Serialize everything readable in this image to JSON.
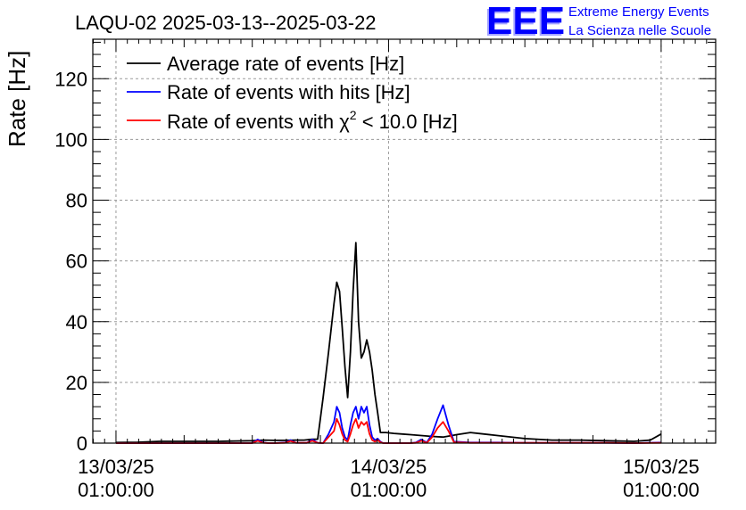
{
  "chart_data": {
    "type": "line",
    "title": "LAQU-02 2025-03-13--2025-03-22",
    "logo": {
      "text": "EEE",
      "line1": "Extreme Energy Events",
      "line2": "La Scienza nelle Scuole",
      "color": "#0000ff"
    },
    "xlabel": "",
    "ylabel": "Rate [Hz]",
    "ylim": [
      0,
      133
    ],
    "xlim": [
      -0.085,
      2.2
    ],
    "grid": true,
    "legend_position": "top-left",
    "x_ticks": [
      {
        "value": 0,
        "line1": "13/03/25",
        "line2": "01:00:00"
      },
      {
        "value": 1,
        "line1": "14/03/25",
        "line2": "01:00:00"
      },
      {
        "value": 2,
        "line1": "15/03/25",
        "line2": "01:00:00"
      }
    ],
    "y_ticks": [
      0,
      20,
      40,
      60,
      80,
      100,
      120
    ],
    "legend": [
      {
        "label": "Average rate of events [Hz]",
        "color": "#000000"
      },
      {
        "label": "Rate of events with hits [Hz]",
        "color": "#0000ff"
      },
      {
        "label_prefix": "Rate of events with ",
        "label_symbol": "χ",
        "label_sup": "2",
        "label_suffix": " < 10.0 [Hz]",
        "color": "#ff0000"
      }
    ],
    "series": [
      {
        "color": "#000000",
        "x": [
          0.0,
          0.08,
          0.16,
          0.24,
          0.32,
          0.38,
          0.44,
          0.5,
          0.54,
          0.58,
          0.62,
          0.66,
          0.69,
          0.72,
          0.74,
          0.76,
          0.78,
          0.8,
          0.81,
          0.82,
          0.83,
          0.84,
          0.85,
          0.86,
          0.87,
          0.88,
          0.89,
          0.9,
          0.91,
          0.92,
          0.93,
          0.94,
          0.95,
          0.96,
          0.97,
          0.99,
          1.02,
          1.05,
          1.08,
          1.12,
          1.16,
          1.2,
          1.25,
          1.3,
          1.35,
          1.4,
          1.5,
          1.6,
          1.7,
          1.8,
          1.9,
          1.96,
          2.0
        ],
        "y": [
          0.2,
          0.3,
          0.6,
          0.6,
          0.6,
          0.6,
          0.7,
          0.8,
          1.0,
          0.9,
          0.9,
          1.0,
          1.0,
          1.3,
          1.3,
          15,
          30,
          46,
          53,
          50,
          38,
          25,
          15,
          30,
          50,
          66,
          40,
          28,
          30,
          34,
          30,
          24,
          16,
          10,
          3.5,
          3.5,
          3.2,
          3.0,
          2.8,
          2.5,
          2.2,
          2.0,
          2.8,
          3.5,
          3.0,
          2.5,
          1.5,
          1.0,
          1.0,
          0.8,
          0.6,
          1.0,
          3.0
        ]
      },
      {
        "color": "#0000ff",
        "x": [
          0.0,
          0.08,
          0.16,
          0.24,
          0.32,
          0.38,
          0.44,
          0.5,
          0.52,
          0.54,
          0.56,
          0.58,
          0.62,
          0.64,
          0.66,
          0.7,
          0.72,
          0.74,
          0.76,
          0.78,
          0.8,
          0.81,
          0.82,
          0.83,
          0.84,
          0.85,
          0.86,
          0.87,
          0.88,
          0.89,
          0.9,
          0.91,
          0.92,
          0.93,
          0.94,
          0.95,
          0.96,
          0.97,
          0.98,
          0.99,
          1.02,
          1.05,
          1.08,
          1.1,
          1.12,
          1.14,
          1.16,
          1.18,
          1.2,
          1.22,
          1.24,
          1.3,
          1.4,
          1.5,
          1.6,
          1.7,
          1.8,
          1.9,
          2.0
        ],
        "y": [
          0,
          0,
          0,
          0,
          0,
          0,
          0,
          0,
          1.2,
          0.2,
          0,
          0,
          0.2,
          1.0,
          0.1,
          0.1,
          1.2,
          0.1,
          0,
          3,
          7,
          12,
          10,
          5,
          2,
          1,
          6,
          10,
          12,
          8,
          12,
          10,
          12,
          6,
          2,
          1,
          1.5,
          0.5,
          0,
          0,
          0,
          0,
          0,
          0.2,
          1.2,
          0.2,
          3,
          8,
          12.5,
          6,
          0.5,
          0.2,
          0.2,
          0.1,
          0.1,
          0.1,
          0.1,
          0,
          0.2
        ]
      },
      {
        "color": "#ff0000",
        "x": [
          0.0,
          0.08,
          0.16,
          0.24,
          0.32,
          0.38,
          0.44,
          0.5,
          0.52,
          0.54,
          0.56,
          0.58,
          0.62,
          0.64,
          0.66,
          0.7,
          0.72,
          0.74,
          0.76,
          0.78,
          0.8,
          0.81,
          0.82,
          0.83,
          0.84,
          0.85,
          0.86,
          0.87,
          0.88,
          0.89,
          0.9,
          0.91,
          0.92,
          0.93,
          0.94,
          0.95,
          0.96,
          0.97,
          0.98,
          0.99,
          1.02,
          1.05,
          1.08,
          1.1,
          1.12,
          1.14,
          1.16,
          1.18,
          1.2,
          1.22,
          1.24,
          1.3,
          1.4,
          1.5,
          1.6,
          1.7,
          1.8,
          1.9,
          2.0
        ],
        "y": [
          0,
          0,
          0,
          0,
          0,
          0,
          0,
          0,
          0.8,
          0.1,
          0,
          0,
          0.1,
          0.7,
          0.1,
          0.1,
          0.8,
          0.1,
          0,
          2,
          4,
          8,
          6,
          3,
          1,
          0.5,
          3,
          6,
          8,
          5,
          7,
          6,
          7,
          3,
          1,
          0.5,
          1.0,
          0.3,
          0,
          0,
          0,
          0,
          0,
          0.1,
          0.8,
          0.1,
          2,
          5,
          7,
          4,
          0.3,
          0.1,
          0.1,
          0.1,
          0.1,
          0.1,
          0.1,
          0,
          0.1
        ]
      }
    ]
  }
}
